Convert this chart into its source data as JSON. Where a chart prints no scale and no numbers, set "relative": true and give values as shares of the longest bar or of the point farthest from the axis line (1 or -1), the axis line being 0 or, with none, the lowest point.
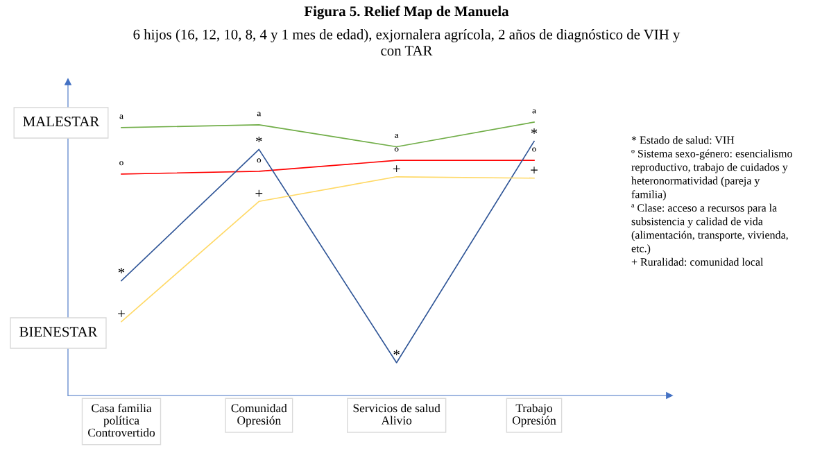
{
  "chart_data": {
    "type": "line",
    "relative": true,
    "title": "Figura 5. Relief Map de Manuela",
    "subtitle": "6 hijos (16, 12, 10, 8, 4 y 1 mes de edad), exjornalera agrícola, 2 años de diagnóstico de VIH y\ncon TAR",
    "categories": [
      "Casa familia\npolítica\nControvertido",
      "Comunidad\nOpresión",
      "Servicios de salud\nAlivio",
      "Trabajo\nOpresión"
    ],
    "series": [
      {
        "name": "ª",
        "color": "#70ad47",
        "values": [
          0.98,
          0.99,
          0.91,
          1.0
        ]
      },
      {
        "name": "º",
        "color": "#ff0000",
        "values": [
          0.81,
          0.82,
          0.86,
          0.86
        ]
      },
      {
        "name": "*",
        "color": "#2f5597",
        "values": [
          0.42,
          0.9,
          0.12,
          0.93
        ]
      },
      {
        "name": "+",
        "color": "#ffd966",
        "values": [
          0.27,
          0.71,
          0.8,
          0.795
        ]
      }
    ],
    "annotations": [
      "MALESTAR",
      "BIENESTAR",
      "* Estado de salud: VIH\nº Sistema sexo-género: esencialismo\nreproductivo, trabajo de cuidados y\nheteronormatividad (pareja y\nfamilia)\nª Clase: acceso a recursos para la\nsubsistencia y calidad de vida\n(alimentación, transporte, vivienda,\netc.)\n+ Ruralidad: comunidad local"
    ]
  }
}
